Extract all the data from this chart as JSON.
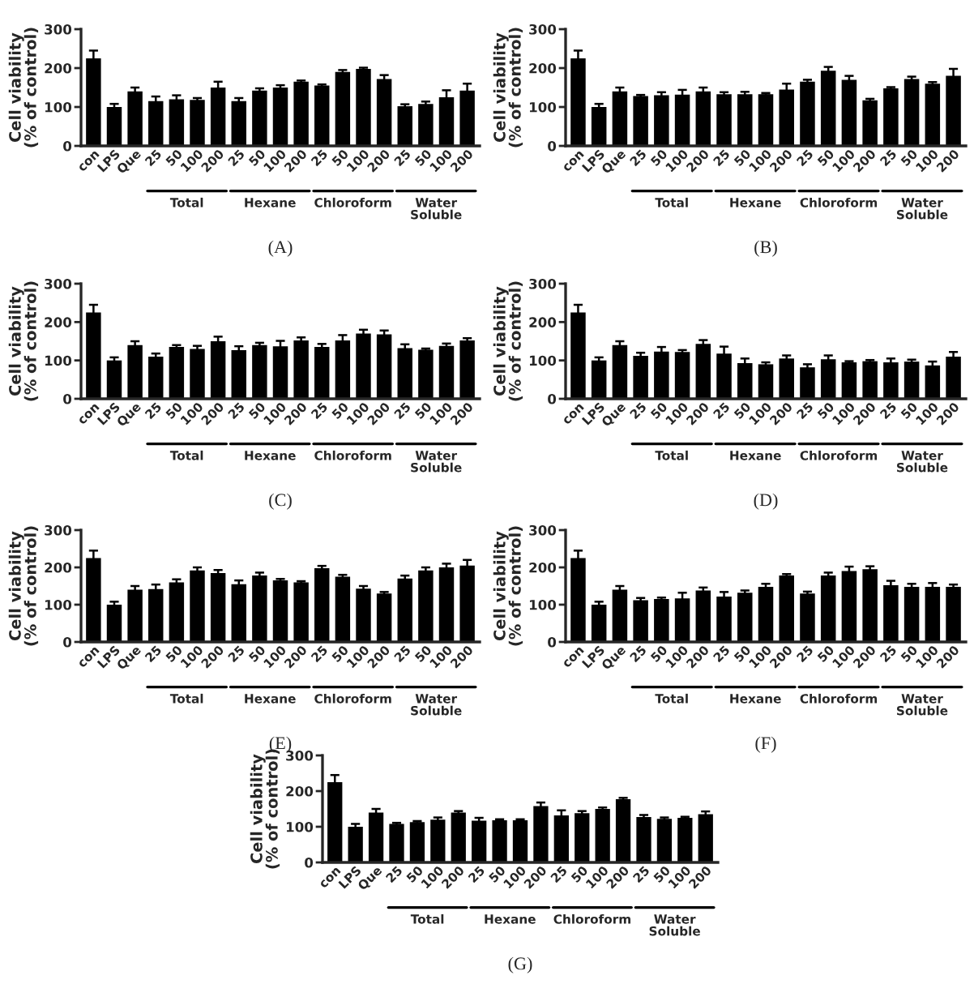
{
  "chart_data": [
    {
      "type": "bar",
      "title": "(A)",
      "ylabel": "Cell viability\n(% of control)",
      "color": "#000000",
      "ylim": [
        0,
        300
      ],
      "yticks": [
        0,
        100,
        200,
        300
      ],
      "categories": [
        "con",
        "LPS",
        "Que",
        "25",
        "50",
        "100",
        "200",
        "25",
        "50",
        "100",
        "200",
        "25",
        "50",
        "100",
        "200",
        "25",
        "50",
        "100",
        "200"
      ],
      "values": [
        225,
        100,
        140,
        115,
        120,
        118,
        150,
        115,
        142,
        150,
        165,
        155,
        190,
        198,
        172,
        102,
        108,
        125,
        142
      ],
      "errors": [
        20,
        8,
        10,
        12,
        10,
        5,
        15,
        8,
        6,
        6,
        3,
        3,
        5,
        3,
        10,
        5,
        6,
        18,
        18
      ],
      "annotations": [
        "Total",
        "Hexane",
        "Chloroform",
        "Water\nSoluble"
      ]
    },
    {
      "type": "bar",
      "title": "(B)",
      "ylabel": "Cell viability\n(% of control)",
      "color": "#000000",
      "ylim": [
        0,
        300
      ],
      "yticks": [
        0,
        100,
        200,
        300
      ],
      "categories": [
        "con",
        "LPS",
        "Que",
        "25",
        "50",
        "100",
        "200",
        "25",
        "50",
        "100",
        "200",
        "25",
        "50",
        "100",
        "200",
        "25",
        "50",
        "100",
        "200"
      ],
      "values": [
        225,
        100,
        140,
        128,
        130,
        132,
        140,
        133,
        133,
        133,
        145,
        165,
        193,
        170,
        117,
        148,
        172,
        160,
        180
      ],
      "errors": [
        20,
        8,
        10,
        3,
        8,
        12,
        10,
        5,
        6,
        3,
        15,
        5,
        10,
        10,
        4,
        3,
        6,
        4,
        18
      ],
      "annotations": [
        "Total",
        "Hexane",
        "Chloroform",
        "Water\nSoluble"
      ]
    },
    {
      "type": "bar",
      "title": "(C)",
      "ylabel": "Cell viability\n(% of control)",
      "color": "#000000",
      "ylim": [
        0,
        300
      ],
      "yticks": [
        0,
        100,
        200,
        300
      ],
      "categories": [
        "con",
        "LPS",
        "Que",
        "25",
        "50",
        "100",
        "200",
        "25",
        "50",
        "100",
        "200",
        "25",
        "50",
        "100",
        "200",
        "25",
        "50",
        "100",
        "200"
      ],
      "values": [
        225,
        100,
        140,
        110,
        135,
        130,
        150,
        127,
        140,
        137,
        152,
        135,
        152,
        170,
        168,
        132,
        128,
        138,
        152
      ],
      "errors": [
        20,
        8,
        10,
        8,
        5,
        8,
        12,
        10,
        6,
        14,
        8,
        8,
        14,
        10,
        10,
        10,
        3,
        6,
        6
      ],
      "annotations": [
        "Total",
        "Hexane",
        "Chloroform",
        "Water\nSoluble"
      ]
    },
    {
      "type": "bar",
      "title": "(D)",
      "ylabel": "Cell viability\n(% of control)",
      "color": "#000000",
      "ylim": [
        0,
        300
      ],
      "yticks": [
        0,
        100,
        200,
        300
      ],
      "categories": [
        "con",
        "LPS",
        "Que",
        "25",
        "50",
        "100",
        "200",
        "25",
        "50",
        "100",
        "200",
        "25",
        "50",
        "100",
        "200",
        "25",
        "50",
        "100",
        "200"
      ],
      "values": [
        225,
        100,
        140,
        112,
        123,
        122,
        143,
        118,
        93,
        90,
        105,
        82,
        103,
        95,
        98,
        95,
        97,
        87,
        110
      ],
      "errors": [
        20,
        8,
        10,
        8,
        12,
        5,
        10,
        18,
        12,
        5,
        8,
        8,
        10,
        3,
        3,
        10,
        5,
        10,
        12
      ],
      "annotations": [
        "Total",
        "Hexane",
        "Chloroform",
        "Water\nSoluble"
      ]
    },
    {
      "type": "bar",
      "title": "(E)",
      "ylabel": "Cell viability\n(% of control)",
      "color": "#000000",
      "ylim": [
        0,
        300
      ],
      "yticks": [
        0,
        100,
        200,
        300
      ],
      "categories": [
        "con",
        "LPS",
        "Que",
        "25",
        "50",
        "100",
        "200",
        "25",
        "50",
        "100",
        "200",
        "25",
        "50",
        "100",
        "200",
        "25",
        "50",
        "100",
        "200"
      ],
      "values": [
        225,
        100,
        140,
        142,
        160,
        192,
        185,
        155,
        178,
        165,
        160,
        198,
        175,
        143,
        130,
        170,
        192,
        200,
        205
      ],
      "errors": [
        20,
        8,
        10,
        12,
        8,
        8,
        8,
        10,
        8,
        4,
        3,
        6,
        5,
        7,
        4,
        8,
        8,
        10,
        15
      ],
      "annotations": [
        "Total",
        "Hexane",
        "Chloroform",
        "Water\nSoluble"
      ]
    },
    {
      "type": "bar",
      "title": "(F)",
      "ylabel": "Cell viability\n(% of control)",
      "color": "#000000",
      "ylim": [
        0,
        300
      ],
      "yticks": [
        0,
        100,
        200,
        300
      ],
      "categories": [
        "con",
        "LPS",
        "Que",
        "25",
        "50",
        "100",
        "200",
        "25",
        "50",
        "100",
        "200",
        "25",
        "50",
        "100",
        "200",
        "25",
        "50",
        "100",
        "200"
      ],
      "values": [
        225,
        100,
        140,
        112,
        115,
        117,
        138,
        122,
        132,
        148,
        178,
        130,
        178,
        190,
        195,
        152,
        148,
        148,
        148
      ],
      "errors": [
        20,
        8,
        10,
        6,
        4,
        15,
        8,
        12,
        6,
        8,
        4,
        5,
        8,
        12,
        8,
        12,
        8,
        10,
        6
      ],
      "annotations": [
        "Total",
        "Hexane",
        "Chloroform",
        "Water\nSoluble"
      ]
    },
    {
      "type": "bar",
      "title": "(G)",
      "ylabel": "Cell viability\n(% of control)",
      "color": "#000000",
      "ylim": [
        0,
        300
      ],
      "yticks": [
        0,
        100,
        200,
        300
      ],
      "categories": [
        "con",
        "LPS",
        "Que",
        "25",
        "50",
        "100",
        "200",
        "25",
        "50",
        "100",
        "200",
        "25",
        "50",
        "100",
        "200",
        "25",
        "50",
        "100",
        "200"
      ],
      "values": [
        225,
        100,
        140,
        108,
        113,
        120,
        140,
        117,
        118,
        118,
        158,
        132,
        138,
        150,
        177,
        127,
        122,
        125,
        135
      ],
      "errors": [
        20,
        8,
        10,
        3,
        3,
        6,
        4,
        8,
        3,
        3,
        10,
        14,
        6,
        4,
        4,
        6,
        4,
        3,
        8
      ],
      "annotations": [
        "Total",
        "Hexane",
        "Chloroform",
        "Water\nSoluble"
      ]
    }
  ]
}
